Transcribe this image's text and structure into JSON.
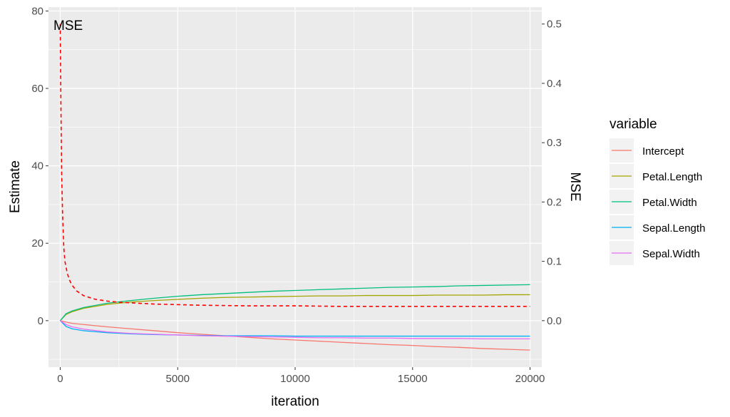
{
  "chart_data": {
    "type": "line",
    "xlabel": "iteration",
    "ylabel": "Estimate",
    "y2label": "MSE",
    "xlim": [
      -500,
      20500
    ],
    "ylim": [
      -12,
      81
    ],
    "y2lim": [
      -0.0783,
      0.5285
    ],
    "grid": true,
    "x_ticks": [
      0,
      5000,
      10000,
      15000,
      20000
    ],
    "x_tick_labels": [
      "0",
      "5000",
      "10000",
      "15000",
      "20000"
    ],
    "y_ticks": [
      0,
      20,
      40,
      60,
      80
    ],
    "y_tick_labels": [
      "0",
      "20",
      "40",
      "60",
      "80"
    ],
    "y2_ticks": [
      0.0,
      0.1,
      0.2,
      0.3,
      0.4,
      0.5
    ],
    "y2_tick_labels": [
      "0.0",
      "0.1",
      "0.2",
      "0.3",
      "0.4",
      "0.5"
    ],
    "legend": {
      "title": "variable",
      "placement": "right",
      "entries": [
        "Intercept",
        "Petal.Length",
        "Petal.Width",
        "Sepal.Length",
        "Sepal.Width"
      ]
    },
    "annotation": {
      "text": "MSE",
      "x": 0,
      "y": 77,
      "color": "#ff0000"
    },
    "series": [
      {
        "name": "Intercept",
        "color": "#F8766D",
        "x": [
          0,
          500,
          1000,
          2000,
          3000,
          4000,
          5000,
          6000,
          7000,
          8000,
          9000,
          10000,
          11000,
          12000,
          13000,
          14000,
          15000,
          16000,
          17000,
          18000,
          19000,
          20000
        ],
        "y": [
          0,
          -0.7,
          -1.0,
          -1.6,
          -2.1,
          -2.6,
          -3.1,
          -3.5,
          -3.9,
          -4.3,
          -4.7,
          -5.0,
          -5.3,
          -5.6,
          -5.9,
          -6.2,
          -6.4,
          -6.7,
          -6.9,
          -7.2,
          -7.4,
          -7.6
        ]
      },
      {
        "name": "Petal.Length",
        "color": "#A3A500",
        "x": [
          0,
          250,
          500,
          1000,
          2000,
          3000,
          4000,
          5000,
          6000,
          7000,
          8000,
          9000,
          10000,
          11000,
          12000,
          13000,
          14000,
          15000,
          16000,
          17000,
          18000,
          19000,
          20000
        ],
        "y": [
          0,
          1.6,
          2.3,
          3.2,
          4.2,
          4.8,
          5.2,
          5.5,
          5.8,
          6.0,
          6.1,
          6.2,
          6.3,
          6.4,
          6.4,
          6.5,
          6.5,
          6.5,
          6.6,
          6.6,
          6.6,
          6.7,
          6.7
        ]
      },
      {
        "name": "Petal.Width",
        "color": "#00BF7D",
        "x": [
          0,
          250,
          500,
          1000,
          2000,
          3000,
          4000,
          5000,
          6000,
          7000,
          8000,
          9000,
          10000,
          11000,
          12000,
          13000,
          14000,
          15000,
          16000,
          17000,
          18000,
          19000,
          20000
        ],
        "y": [
          0,
          1.8,
          2.5,
          3.4,
          4.5,
          5.2,
          5.8,
          6.3,
          6.7,
          7.0,
          7.3,
          7.6,
          7.8,
          8.0,
          8.2,
          8.4,
          8.6,
          8.7,
          8.8,
          9.0,
          9.1,
          9.2,
          9.3
        ]
      },
      {
        "name": "Sepal.Length",
        "color": "#00B0F6",
        "x": [
          0,
          250,
          500,
          1000,
          2000,
          3000,
          4000,
          5000,
          6000,
          7000,
          8000,
          9000,
          10000,
          11000,
          12000,
          13000,
          14000,
          15000,
          16000,
          17000,
          18000,
          19000,
          20000
        ],
        "y": [
          0,
          -1.5,
          -2.1,
          -2.6,
          -3.1,
          -3.4,
          -3.6,
          -3.7,
          -3.8,
          -3.9,
          -3.9,
          -3.9,
          -4.0,
          -4.0,
          -4.0,
          -4.0,
          -4.0,
          -4.0,
          -4.0,
          -4.0,
          -4.0,
          -4.0,
          -4.0
        ]
      },
      {
        "name": "Sepal.Width",
        "color": "#E76BF3",
        "x": [
          0,
          250,
          500,
          1000,
          2000,
          3000,
          4000,
          5000,
          6000,
          7000,
          8000,
          9000,
          10000,
          11000,
          12000,
          13000,
          14000,
          15000,
          16000,
          17000,
          18000,
          19000,
          20000
        ],
        "y": [
          0,
          -1.0,
          -1.6,
          -2.2,
          -2.9,
          -3.3,
          -3.5,
          -3.7,
          -3.9,
          -4.0,
          -4.1,
          -4.2,
          -4.3,
          -4.4,
          -4.4,
          -4.5,
          -4.5,
          -4.6,
          -4.6,
          -4.6,
          -4.7,
          -4.7,
          -4.7
        ]
      },
      {
        "name": "MSE",
        "color": "#ff0000",
        "dashed": true,
        "axis": "right",
        "x": [
          0,
          30,
          60,
          100,
          150,
          200,
          300,
          400,
          500,
          700,
          1000,
          1500,
          2000,
          2500,
          3000,
          4000,
          5000,
          6000,
          8000,
          10000,
          12000,
          14000,
          16000,
          18000,
          20000
        ],
        "y": [
          0.5,
          0.36,
          0.25,
          0.18,
          0.125,
          0.1,
          0.08,
          0.068,
          0.06,
          0.05,
          0.042,
          0.036,
          0.033,
          0.031,
          0.03,
          0.028,
          0.027,
          0.026,
          0.025,
          0.025,
          0.024,
          0.024,
          0.024,
          0.024,
          0.024
        ]
      }
    ]
  }
}
